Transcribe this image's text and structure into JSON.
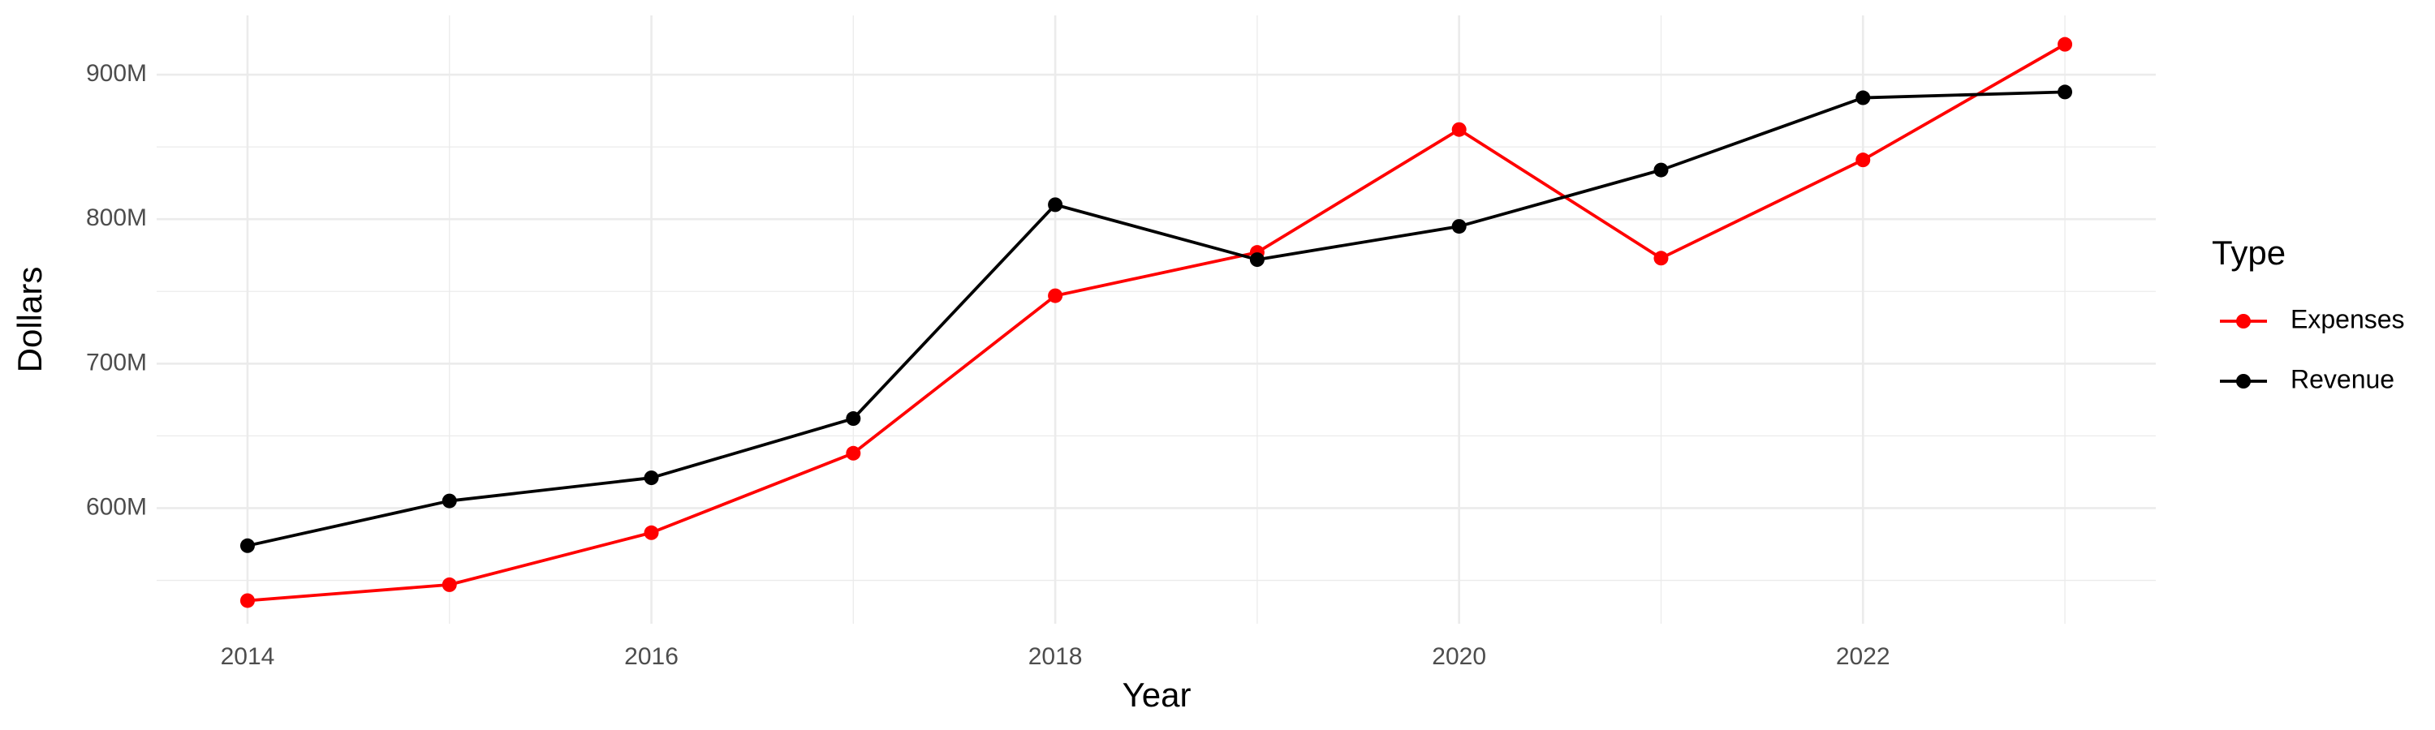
{
  "chart_data": {
    "type": "line",
    "x_label": "Year",
    "y_label": "Dollars",
    "x": [
      2014,
      2015,
      2016,
      2017,
      2018,
      2019,
      2020,
      2021,
      2022,
      2023
    ],
    "series": [
      {
        "name": "Expenses",
        "color": "#ff0000",
        "values": [
          536000000,
          547000000,
          583000000,
          638000000,
          747000000,
          777000000,
          862000000,
          773000000,
          841000000,
          921000000
        ]
      },
      {
        "name": "Revenue",
        "color": "#000000",
        "values": [
          574000000,
          605000000,
          621000000,
          662000000,
          810000000,
          772000000,
          795000000,
          834000000,
          884000000,
          888000000
        ]
      }
    ],
    "xlim": [
      2013.55,
      2023.45
    ],
    "xticks": [
      2014,
      2016,
      2018,
      2020,
      2022
    ],
    "ylim": [
      520000000,
      941000000
    ],
    "yticks": [
      {
        "value": 600000000,
        "label": "600M"
      },
      {
        "value": 700000000,
        "label": "700M"
      },
      {
        "value": 800000000,
        "label": "800M"
      },
      {
        "value": 900000000,
        "label": "900M"
      }
    ],
    "grid": true,
    "legend_title": "Type",
    "legend_position": "right"
  }
}
